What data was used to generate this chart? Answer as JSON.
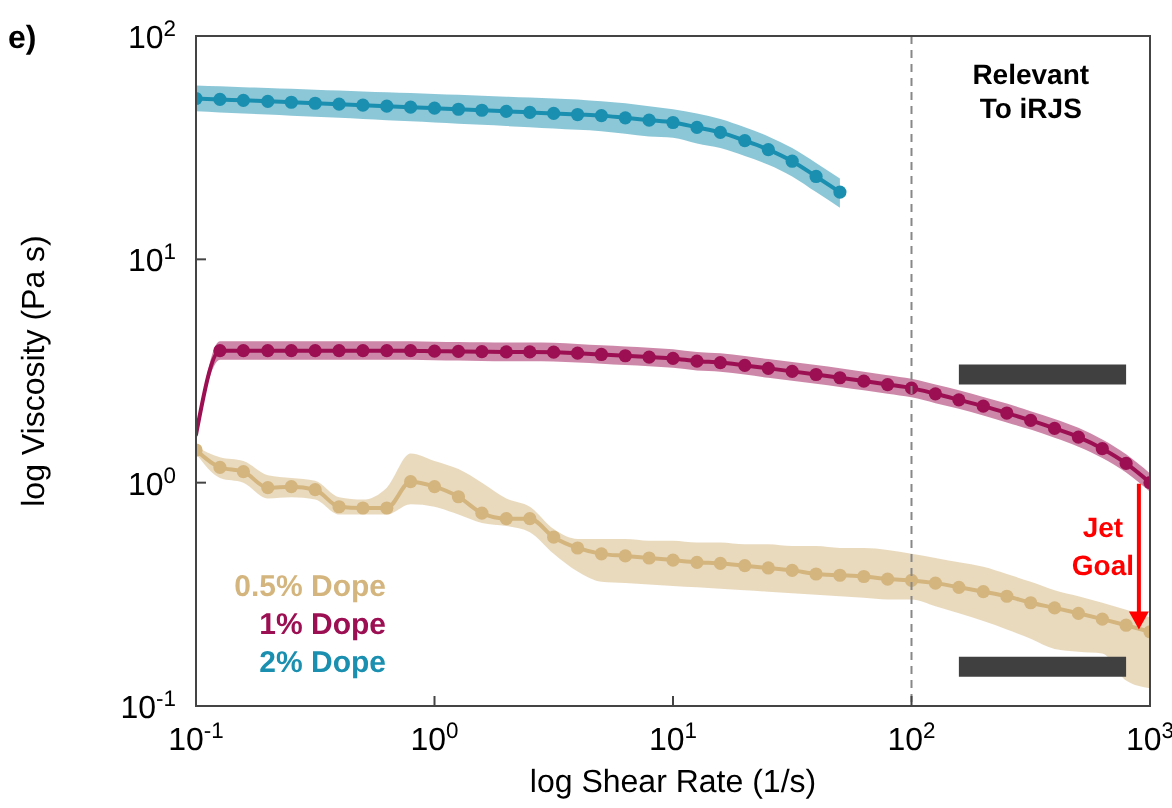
{
  "chart_data": {
    "type": "line",
    "xlabel": "log Shear Rate (1/s)",
    "ylabel": "log Viscosity (Pa s)",
    "log": "xy",
    "marker": "circle",
    "line_style": "solid",
    "grid": false,
    "legend": "bottom left",
    "xlim": [
      0.1,
      1000
    ],
    "xticks": [
      {
        "value": 0.1,
        "label": "10$^{-1}$"
      },
      {
        "value": 1,
        "label": "10$^{0}$"
      },
      {
        "value": 10,
        "label": "10$^{1}$"
      },
      {
        "value": 100,
        "label": "10$^{2}$"
      },
      {
        "value": 1000,
        "label": "10$^{3}$"
      }
    ],
    "ylim": [
      0.1,
      100
    ],
    "yticks": [
      {
        "value": 0.1,
        "label": "10$^{-1}$"
      },
      {
        "value": 1,
        "label": "10$^{0}$"
      },
      {
        "value": 10,
        "label": "10$^{1}$"
      },
      {
        "value": 100,
        "label": "10$^{2}$"
      }
    ],
    "x": [
      0.1,
      0.126,
      0.158,
      0.2,
      0.251,
      0.316,
      0.398,
      0.501,
      0.631,
      0.794,
      1,
      1.26,
      1.58,
      2,
      2.51,
      3.16,
      3.98,
      5.01,
      6.31,
      7.94,
      10,
      12.6,
      15.8,
      20,
      25.1,
      31.6,
      39.8,
      50.1,
      63.1,
      79.4,
      100,
      126,
      158,
      200,
      251,
      316,
      398,
      501,
      631,
      794,
      1000
    ],
    "series": [
      {
        "name": "0.5% Dope",
        "color": "#d4b57e",
        "values": [
          1.4,
          1.17,
          1.12,
          0.95,
          0.96,
          0.93,
          0.78,
          0.77,
          0.77,
          1.01,
          0.96,
          0.865,
          0.73,
          0.69,
          0.69,
          0.57,
          0.51,
          0.48,
          0.47,
          0.46,
          0.45,
          0.44,
          0.435,
          0.425,
          0.415,
          0.405,
          0.39,
          0.385,
          0.38,
          0.37,
          0.365,
          0.355,
          0.34,
          0.325,
          0.31,
          0.29,
          0.275,
          0.26,
          0.245,
          0.23,
          0.215
        ],
        "upper": [
          1.45,
          1.3,
          1.25,
          1.08,
          1.05,
          1.02,
          0.86,
          0.84,
          0.95,
          1.35,
          1.25,
          1.15,
          1.0,
          0.85,
          0.78,
          0.62,
          0.56,
          0.56,
          0.56,
          0.55,
          0.55,
          0.54,
          0.54,
          0.53,
          0.53,
          0.52,
          0.52,
          0.51,
          0.51,
          0.5,
          0.48,
          0.46,
          0.44,
          0.42,
          0.39,
          0.36,
          0.33,
          0.31,
          0.29,
          0.27,
          0.25
        ],
        "lower": [
          1.35,
          1.05,
          1.0,
          0.85,
          0.86,
          0.84,
          0.72,
          0.72,
          0.72,
          0.8,
          0.78,
          0.72,
          0.66,
          0.64,
          0.6,
          0.48,
          0.4,
          0.36,
          0.355,
          0.35,
          0.345,
          0.34,
          0.335,
          0.33,
          0.325,
          0.32,
          0.315,
          0.31,
          0.305,
          0.3,
          0.3,
          0.28,
          0.26,
          0.24,
          0.22,
          0.2,
          0.18,
          0.175,
          0.172,
          0.13,
          0.12
        ]
      },
      {
        "name": "1% Dope",
        "color": "#9c0f52",
        "values": [
          1.64,
          3.9,
          3.9,
          3.9,
          3.9,
          3.9,
          3.9,
          3.9,
          3.9,
          3.9,
          3.88,
          3.87,
          3.86,
          3.85,
          3.85,
          3.84,
          3.8,
          3.75,
          3.7,
          3.65,
          3.6,
          3.5,
          3.45,
          3.35,
          3.25,
          3.15,
          3.05,
          2.95,
          2.85,
          2.75,
          2.65,
          2.5,
          2.35,
          2.2,
          2.05,
          1.9,
          1.75,
          1.6,
          1.42,
          1.22,
          1.0
        ],
        "upper": [
          1.64,
          4.3,
          4.3,
          4.3,
          4.3,
          4.3,
          4.3,
          4.3,
          4.3,
          4.3,
          4.28,
          4.26,
          4.25,
          4.24,
          4.24,
          4.23,
          4.18,
          4.12,
          4.07,
          4.02,
          3.96,
          3.85,
          3.8,
          3.69,
          3.58,
          3.47,
          3.36,
          3.25,
          3.14,
          3.03,
          2.92,
          2.75,
          2.59,
          2.42,
          2.26,
          2.09,
          1.93,
          1.76,
          1.56,
          1.34,
          1.1
        ],
        "lower": [
          1.64,
          3.55,
          3.55,
          3.55,
          3.55,
          3.55,
          3.55,
          3.55,
          3.55,
          3.55,
          3.53,
          3.52,
          3.51,
          3.5,
          3.5,
          3.49,
          3.45,
          3.41,
          3.36,
          3.32,
          3.27,
          3.18,
          3.14,
          3.05,
          2.95,
          2.86,
          2.77,
          2.68,
          2.59,
          2.5,
          2.41,
          2.27,
          2.14,
          2.0,
          1.86,
          1.73,
          1.59,
          1.45,
          1.29,
          1.11,
          0.91
        ]
      },
      {
        "name": "2% Dope",
        "color": "#1a8fb0",
        "values": [
          52.5,
          52,
          51.5,
          51,
          50.5,
          50,
          49.5,
          49,
          48.5,
          48,
          47.5,
          47,
          46.5,
          46,
          45.5,
          45,
          44.5,
          44,
          43,
          42,
          41,
          39,
          37,
          34,
          31,
          27.5,
          23.5,
          20,
          null,
          null,
          null,
          null,
          null,
          null,
          null,
          null,
          null,
          null,
          null,
          null,
          null
        ],
        "upper": [
          60,
          59.5,
          59,
          58.5,
          58,
          57.5,
          57,
          56.5,
          56,
          55.5,
          55,
          54.5,
          54,
          53.5,
          53,
          52.5,
          52,
          51,
          50,
          48.5,
          47,
          45,
          42.5,
          39,
          35.5,
          31.5,
          27,
          23,
          null,
          null,
          null,
          null,
          null,
          null,
          null,
          null,
          null,
          null,
          null,
          null,
          null
        ],
        "lower": [
          46,
          45.5,
          45,
          44.5,
          44,
          43.5,
          43,
          42.5,
          42,
          41.5,
          41,
          40.5,
          40,
          39.5,
          39,
          38.5,
          38,
          37.5,
          36.5,
          35.5,
          35,
          33,
          31.5,
          29,
          26.5,
          23.5,
          20,
          17,
          null,
          null,
          null,
          null,
          null,
          null,
          null,
          null,
          null,
          null,
          null,
          null,
          null
        ]
      },
      {
        "color": "#404040",
        "values": [
          null,
          null,
          null,
          null,
          null,
          null,
          null,
          null,
          null,
          null,
          null,
          null,
          null,
          null,
          null,
          null,
          null,
          null,
          null,
          null,
          null,
          null,
          null,
          null,
          null,
          null,
          null,
          null,
          null,
          null,
          null,
          null,
          3.05,
          3.05,
          3.05,
          3.05,
          3.05,
          3.05,
          3.05,
          3.05,
          null
        ],
        "marker": "none"
      },
      {
        "color": "#404040",
        "values": [
          null,
          null,
          null,
          null,
          null,
          null,
          null,
          null,
          null,
          null,
          null,
          null,
          null,
          null,
          null,
          null,
          null,
          null,
          null,
          null,
          null,
          null,
          null,
          null,
          null,
          null,
          null,
          null,
          null,
          null,
          null,
          null,
          0.15,
          0.15,
          0.15,
          0.15,
          0.15,
          0.15,
          0.15,
          0.15,
          null
        ],
        "marker": "none"
      }
    ],
    "ref_lines": [
      {
        "axis": "x",
        "value": 100,
        "label": "Relevant To iRJS",
        "color": "#888888",
        "line_style": "dashed"
      }
    ],
    "annotations": [
      "e)",
      {
        "text": "Jet Goal",
        "x": 800,
        "y": 0.22
      }
    ]
  }
}
